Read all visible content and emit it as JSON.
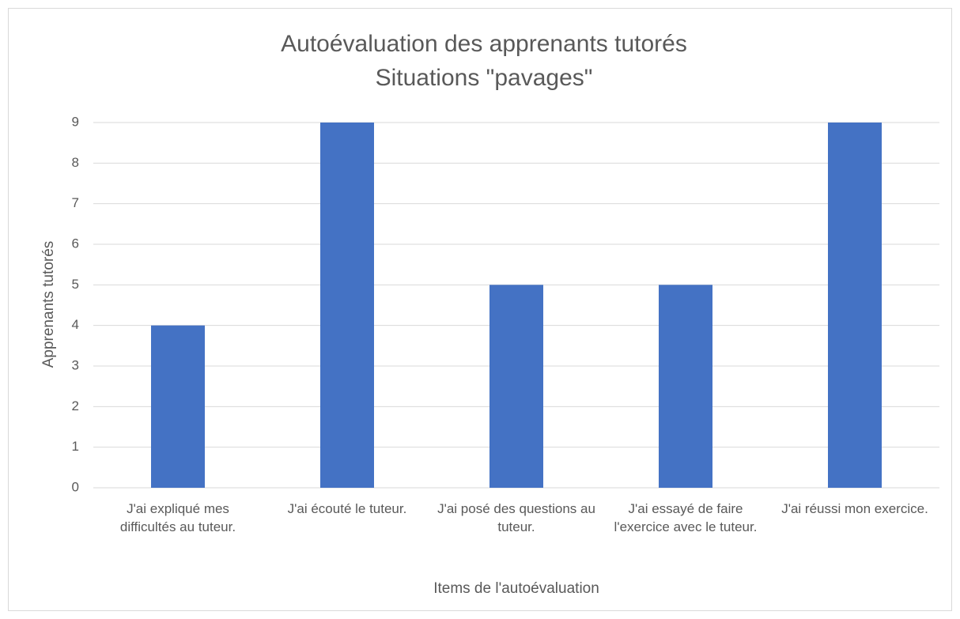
{
  "chart_data": {
    "type": "bar",
    "title": "Autoévaluation des apprenants tutorés",
    "subtitle": "Situations \"pavages\"",
    "x_label": "Items de l'autoévaluation",
    "y_label": "Apprenants tutorés",
    "categories": [
      "J'ai expliqué mes difficultés au tuteur.",
      "J'ai écouté le tuteur.",
      "J'ai posé des questions au tuteur.",
      "J'ai essayé de faire l'exercice avec le tuteur.",
      "J'ai réussi mon exercice."
    ],
    "values": [
      4,
      9,
      5,
      5,
      9
    ],
    "color": "#4472c4",
    "ylim": [
      0,
      9
    ],
    "yticks": [
      0,
      1,
      2,
      3,
      4,
      5,
      6,
      7,
      8,
      9
    ],
    "grid": true
  }
}
